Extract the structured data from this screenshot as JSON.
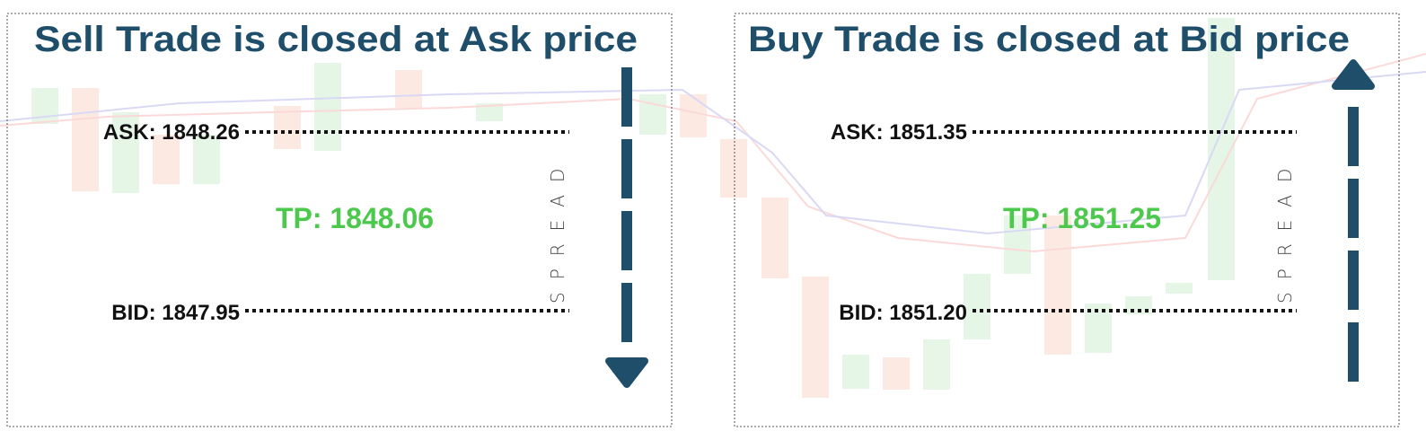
{
  "panels": [
    {
      "title": "Sell Trade is closed at Ask price",
      "ask": "ASK: 1848.26",
      "tp": "TP: 1848.06",
      "bid": "BID: 1847.95",
      "spread": "SPREAD"
    },
    {
      "title": "Buy Trade is closed at Bid price",
      "ask": "ASK: 1851.35",
      "tp": "TP: 1851.25",
      "bid": "BID: 1851.20",
      "spread": "SPREAD"
    }
  ]
}
